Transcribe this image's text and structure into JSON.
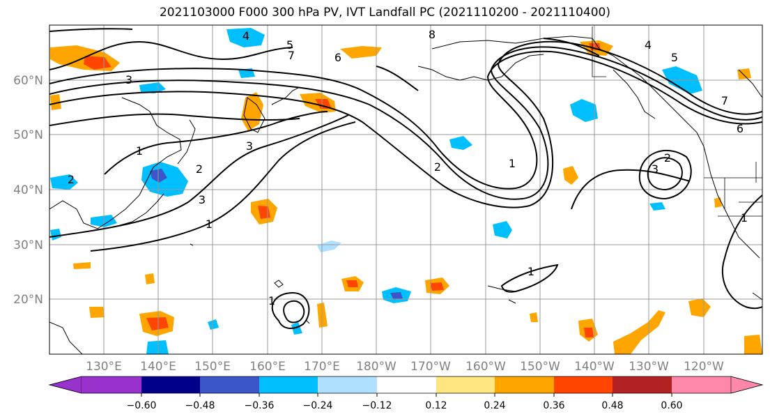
{
  "figure": {
    "title": "2021103000 F000 300 hPa PV, IVT Landfall PC (2021110200 - 2021110400)"
  },
  "map": {
    "lat_labels": [
      "60°N",
      "50°N",
      "40°N",
      "30°N",
      "20°N"
    ],
    "lon_labels": [
      "130°E",
      "140°E",
      "150°E",
      "160°E",
      "170°E",
      "180°W",
      "170°W",
      "160°W",
      "150°W",
      "140°W",
      "130°W",
      "120°W"
    ],
    "contour_labels": [
      "4",
      "5",
      "6",
      "7",
      "8",
      "3",
      "1",
      "2",
      "3",
      "2",
      "1",
      "3",
      "2",
      "1",
      "1",
      "4",
      "5",
      "6",
      "7",
      "1",
      "3",
      "2",
      "1"
    ],
    "contour_color": "#000000",
    "land_outline_color": "#000000",
    "gridline_color": "#999999"
  },
  "colorbar": {
    "tick_labels": [
      "−0.60",
      "−0.48",
      "−0.36",
      "−0.24",
      "−0.12",
      "0.12",
      "0.24",
      "0.36",
      "0.48",
      "0.60"
    ],
    "colors": [
      "#9932cc",
      "#00008b",
      "#3a56c8",
      "#00bfff",
      "#b0e0ff",
      "#ffffff",
      "#ffe680",
      "#ffa500",
      "#ff4500",
      "#b22222",
      "#ff88aa"
    ]
  }
}
